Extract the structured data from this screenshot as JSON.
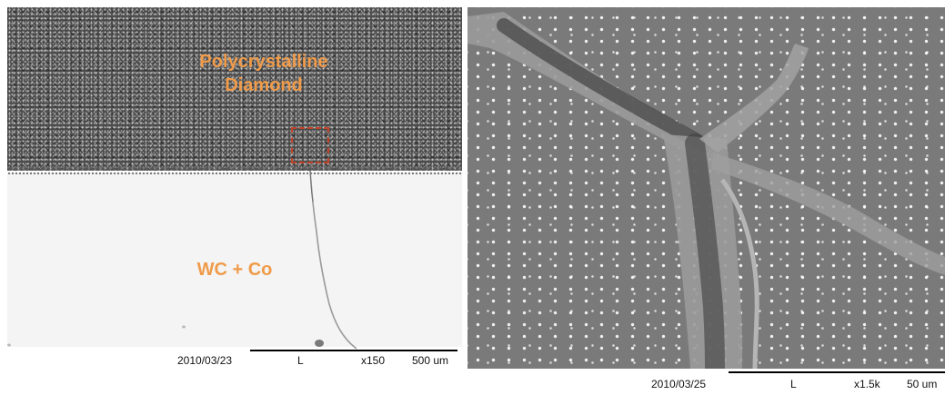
{
  "left_image": {
    "labels": {
      "pcd": "Polycrystalline Diamond",
      "substrate": "WC + Co"
    },
    "scale_bar": {
      "date": "2010/03/23",
      "mode": "L",
      "magnification": "x150",
      "length": "500 um"
    }
  },
  "right_image": {
    "scale_bar": {
      "date": "2010/03/25",
      "mode": "L",
      "magnification": "x1.5k",
      "length": "50 um"
    }
  },
  "colors": {
    "label_orange": "#ef9b4a",
    "zoom_box": "#c0442a"
  }
}
